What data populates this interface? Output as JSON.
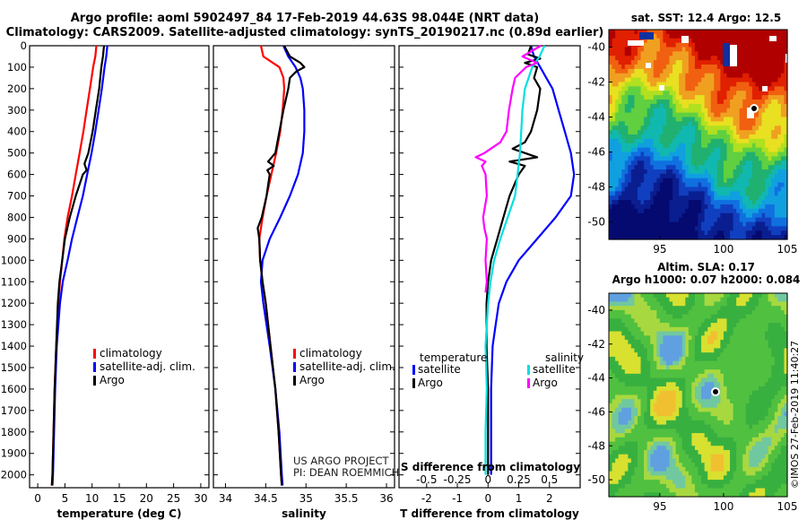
{
  "header": {
    "line1": "Argo profile: aoml 5902497_84 17-Feb-2019 44.63S 98.044E (NRT data)",
    "line2": "Climatology: CARS2009. Satellite-adjusted climatology: synTS_20190217.nc (0.89d earlier)"
  },
  "colors": {
    "climatology": "#ff0000",
    "satellite": "#0000ff",
    "argo": "#000000",
    "argo_salinity_diff": "#ff00ff",
    "satellite_salinity_diff": "#00e0e0"
  },
  "chart_data": [
    {
      "type": "line",
      "id": "temperature",
      "xlabel": "temperature (deg C)",
      "ylabel": "",
      "xlim": [
        -1.5,
        31.5
      ],
      "ylim": [
        2060,
        0
      ],
      "xticks": [
        0,
        5,
        10,
        15,
        20,
        25,
        30
      ],
      "yticks": [
        0,
        100,
        200,
        300,
        400,
        500,
        600,
        700,
        800,
        900,
        1000,
        1100,
        1200,
        1300,
        1400,
        1500,
        1600,
        1700,
        1800,
        1900,
        2000
      ],
      "legend": [
        "climatology",
        "satellite-adj. clim.",
        "Argo"
      ],
      "series": [
        {
          "name": "climatology",
          "color": "#ff0000",
          "depth": [
            0,
            50,
            100,
            200,
            300,
            400,
            500,
            600,
            700,
            800,
            900,
            1000,
            1100,
            1200,
            1400,
            1600,
            1800,
            2000,
            2050
          ],
          "values": [
            10.8,
            10.6,
            10.2,
            9.6,
            9.0,
            8.4,
            7.7,
            7.0,
            6.3,
            5.5,
            4.9,
            4.5,
            4.1,
            3.8,
            3.4,
            3.1,
            2.9,
            2.7,
            2.6
          ]
        },
        {
          "name": "satellite-adj. clim.",
          "color": "#0000ff",
          "depth": [
            0,
            50,
            100,
            200,
            300,
            400,
            500,
            600,
            700,
            800,
            900,
            1000,
            1100,
            1200,
            1400,
            1600,
            1800,
            2000,
            2050
          ],
          "values": [
            12.8,
            12.6,
            12.3,
            11.8,
            11.2,
            10.6,
            9.9,
            9.1,
            8.3,
            7.3,
            6.3,
            5.5,
            4.6,
            4.1,
            3.5,
            3.2,
            3.0,
            2.8,
            2.7
          ]
        },
        {
          "name": "Argo",
          "color": "#000000",
          "depth": [
            0,
            50,
            100,
            200,
            300,
            400,
            500,
            550,
            580,
            600,
            700,
            800,
            900,
            1000,
            1100,
            1200,
            1400,
            1600,
            1800,
            2000,
            2050
          ],
          "values": [
            12.2,
            12.0,
            11.7,
            11.3,
            10.7,
            10.1,
            9.3,
            8.6,
            9.0,
            8.3,
            7.0,
            5.9,
            5.0,
            4.5,
            4.0,
            3.7,
            3.4,
            3.1,
            2.9,
            2.7,
            2.6
          ]
        }
      ]
    },
    {
      "type": "line",
      "id": "salinity",
      "xlabel": "salinity",
      "ylabel": "",
      "xlim": [
        33.85,
        36.1
      ],
      "ylim": [
        2060,
        0
      ],
      "xticks": [
        34,
        34.5,
        35,
        35.5,
        36
      ],
      "legend": [
        "climatology",
        "satellite-adj. clim.",
        "Argo"
      ],
      "annotations": [
        "US ARGO PROJECT",
        "PI: DEAN ROEMMICH"
      ],
      "series": [
        {
          "name": "climatology",
          "color": "#ff0000",
          "depth": [
            0,
            50,
            100,
            150,
            200,
            300,
            400,
            500,
            600,
            700,
            800,
            900,
            1000,
            1100,
            1200,
            1400,
            1600,
            1800,
            2000,
            2050
          ],
          "values": [
            34.44,
            34.47,
            34.67,
            34.72,
            34.73,
            34.71,
            34.68,
            34.63,
            34.57,
            34.51,
            34.46,
            34.42,
            34.43,
            34.46,
            34.5,
            34.56,
            34.62,
            34.66,
            34.69,
            34.7
          ]
        },
        {
          "name": "satellite-adj. clim.",
          "color": "#0000ff",
          "depth": [
            0,
            50,
            100,
            150,
            200,
            300,
            400,
            500,
            600,
            700,
            800,
            900,
            1000,
            1100,
            1200,
            1400,
            1600,
            1800,
            2000,
            2050
          ],
          "values": [
            34.72,
            34.78,
            34.87,
            34.93,
            34.96,
            34.98,
            34.98,
            34.96,
            34.9,
            34.8,
            34.68,
            34.55,
            34.46,
            34.44,
            34.47,
            34.55,
            34.62,
            34.67,
            34.7,
            34.71
          ]
        },
        {
          "name": "Argo",
          "color": "#000000",
          "depth": [
            0,
            50,
            80,
            100,
            120,
            150,
            200,
            300,
            400,
            500,
            540,
            560,
            580,
            600,
            650,
            700,
            800,
            850,
            900,
            1000,
            1100,
            1200,
            1400,
            1600,
            1800,
            2000,
            2050
          ],
          "values": [
            34.73,
            34.8,
            34.93,
            34.98,
            34.88,
            34.8,
            34.78,
            34.72,
            34.67,
            34.62,
            34.53,
            34.6,
            34.52,
            34.55,
            34.53,
            34.51,
            34.45,
            34.4,
            34.42,
            34.43,
            34.46,
            34.5,
            34.56,
            34.62,
            34.66,
            34.69,
            34.7
          ]
        }
      ]
    },
    {
      "type": "line",
      "id": "difference",
      "xlabel": "T difference from climatology",
      "x2label": "S difference from climatology",
      "xlim": [
        -2.9,
        3.0
      ],
      "ylim": [
        2060,
        0
      ],
      "xticks": [
        -2,
        -1,
        0,
        1,
        2
      ],
      "x2ticks": [
        -0.5,
        -0.25,
        0,
        0.25,
        0.5
      ],
      "x2ticklabels": [
        "-0.5",
        "-0.25",
        "0",
        "0.25",
        "0.5"
      ],
      "legend_left_title": "temperature",
      "legend_right_title": "salinity",
      "legend": [
        "satellite",
        "Argo",
        "satellite",
        "Argo"
      ],
      "series": [
        {
          "name": "T satellite",
          "color": "#0000ff",
          "depth": [
            0,
            50,
            100,
            150,
            200,
            300,
            400,
            500,
            600,
            700,
            800,
            900,
            1000,
            1100,
            1200,
            1300,
            1400,
            1600,
            1800,
            2000
          ],
          "values": [
            1.4,
            1.5,
            1.7,
            1.9,
            2.1,
            2.3,
            2.5,
            2.7,
            2.8,
            2.7,
            2.2,
            1.6,
            1.0,
            0.6,
            0.35,
            0.25,
            0.15,
            0.1,
            0.1,
            0.1
          ]
        },
        {
          "name": "T Argo",
          "color": "#000000",
          "depth": [
            0,
            40,
            60,
            80,
            100,
            150,
            200,
            300,
            400,
            450,
            480,
            520,
            540,
            560,
            600,
            700,
            800,
            900,
            1000,
            1100,
            1200,
            1400,
            1600,
            1800,
            2000
          ],
          "values": [
            1.4,
            1.3,
            1.7,
            1.2,
            1.6,
            1.5,
            1.7,
            1.6,
            1.4,
            1.2,
            0.8,
            1.6,
            0.7,
            1.2,
            1.0,
            0.7,
            0.5,
            0.3,
            0.1,
            0.0,
            -0.05,
            -0.05,
            0.0,
            0.0,
            0.0
          ]
        },
        {
          "name": "S satellite",
          "color": "#00e0e0",
          "depth": [
            0,
            50,
            100,
            200,
            300,
            400,
            500,
            600,
            700,
            800,
            900,
            1000,
            1100,
            1200,
            1400,
            1600,
            1800,
            2000
          ],
          "values": [
            0.46,
            0.42,
            0.36,
            0.3,
            0.28,
            0.27,
            0.26,
            0.24,
            0.22,
            0.16,
            0.1,
            0.05,
            0.02,
            0.0,
            -0.02,
            -0.01,
            -0.02,
            -0.02
          ]
        },
        {
          "name": "S Argo",
          "color": "#ff00ff",
          "depth": [
            0,
            50,
            80,
            100,
            150,
            200,
            300,
            400,
            450,
            500,
            520,
            540,
            560,
            600,
            700,
            800,
            850,
            900,
            1000,
            1100,
            1150
          ],
          "values": [
            0.43,
            0.28,
            0.4,
            0.31,
            0.22,
            0.2,
            0.17,
            0.15,
            0.1,
            -0.03,
            -0.1,
            -0.02,
            -0.05,
            -0.02,
            -0.01,
            -0.04,
            -0.03,
            -0.01,
            -0.02,
            -0.01,
            -0.02
          ]
        }
      ]
    },
    {
      "type": "heatmap",
      "id": "sst-map",
      "title": "sat. SST: 12.4 Argo: 12.5",
      "xticks": [
        95,
        100,
        105
      ],
      "yticks": [
        -40,
        -42,
        -44,
        -46,
        -48,
        -50
      ],
      "xlim": [
        91,
        105
      ],
      "ylim": [
        -51,
        -39
      ]
    },
    {
      "type": "heatmap",
      "id": "sla-map",
      "title": "Altim. SLA: 0.17",
      "subtitle": "Argo h1000: 0.07 h2000: 0.084",
      "xticks": [
        95,
        100,
        105
      ],
      "yticks": [
        -40,
        -42,
        -44,
        -46,
        -48,
        -50
      ],
      "xlim": [
        91,
        105
      ],
      "ylim": [
        -51,
        -39
      ]
    }
  ],
  "footer": {
    "credit": "©IMOS 27-Feb-2019 11:40:27"
  }
}
